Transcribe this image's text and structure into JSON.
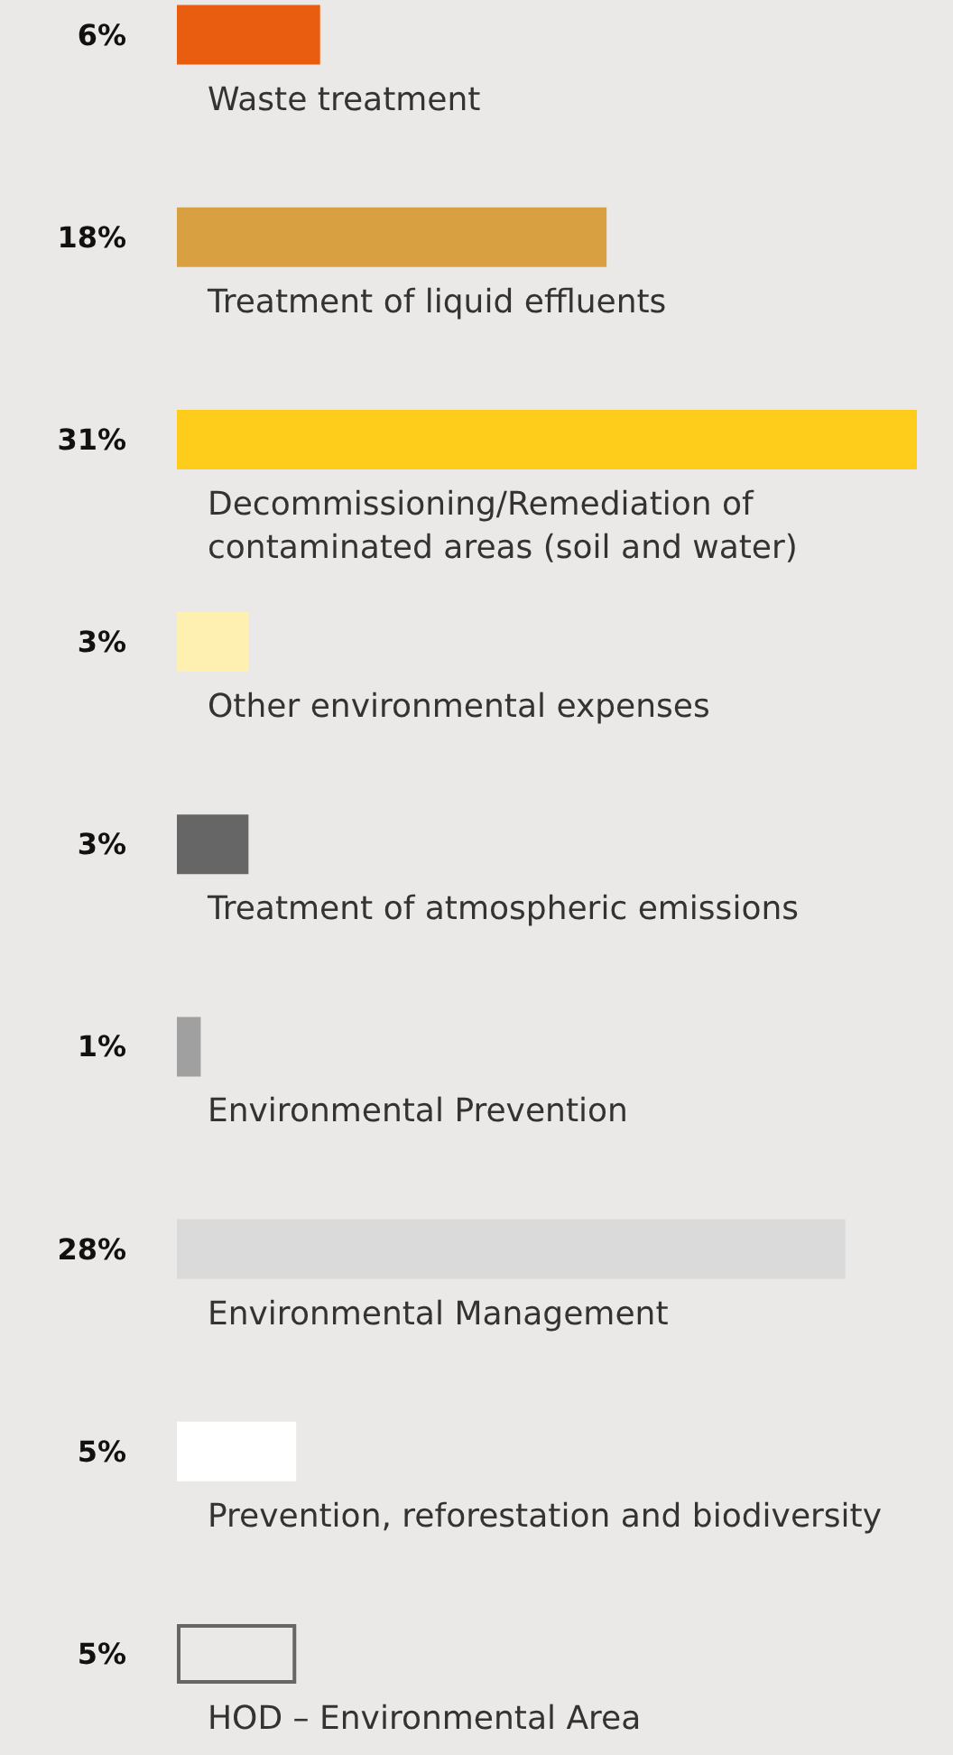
{
  "chart_data": {
    "type": "bar",
    "orientation": "horizontal",
    "categories": [
      "Waste treatment",
      "Treatment of liquid effluents",
      "Decommissioning/Remediation of contaminated areas (soil and water)",
      "Other environmental expenses",
      "Treatment of atmospheric emissions",
      "Environmental Prevention",
      "Environmental Management",
      "Prevention, reforestation and biodiversity",
      "HOD – Environmental Area"
    ],
    "values": [
      6,
      18,
      31,
      3,
      3,
      1,
      28,
      5,
      5
    ],
    "value_labels": [
      "6%",
      "18%",
      "31%",
      "3%",
      "3%",
      "1%",
      "28%",
      "5%",
      "5%"
    ],
    "colors": [
      "#e85d10",
      "#d8a040",
      "#fecc1a",
      "#fdf0b0",
      "#666666",
      "#a0a0a0",
      "#dadada",
      "#ffffff",
      "#ebe9e7"
    ]
  }
}
